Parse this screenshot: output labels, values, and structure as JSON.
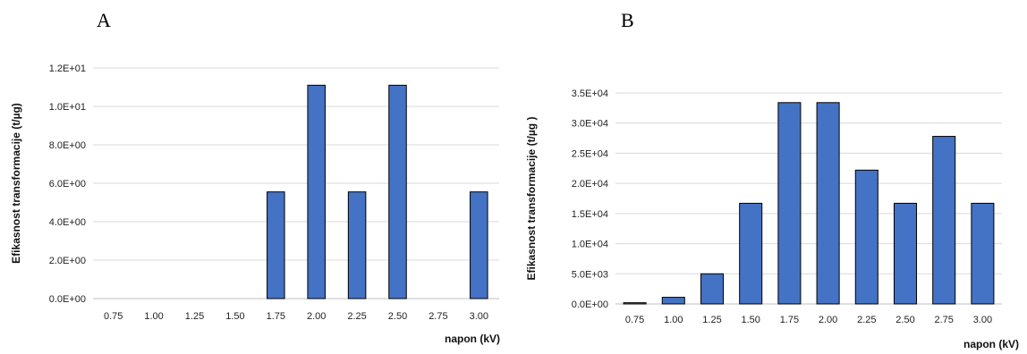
{
  "panels": {
    "a_letter": "A",
    "b_letter": "B"
  },
  "chart_data": [
    {
      "type": "bar",
      "categories": [
        "0.75",
        "1.00",
        "1.25",
        "1.50",
        "1.75",
        "2.00",
        "2.25",
        "2.50",
        "2.75",
        "3.00"
      ],
      "values": [
        0,
        0,
        0,
        0,
        5.55,
        11.1,
        5.55,
        11.1,
        0,
        5.55
      ],
      "title": "",
      "xlabel": "napon (kV)",
      "ylabel": "Efikasnost transformacije (t/µg)",
      "ylim": [
        0,
        12
      ],
      "yticks": [
        0,
        2,
        4,
        6,
        8,
        10,
        12
      ],
      "ytick_labels": [
        "0.0E+00",
        "2.0E+00",
        "4.0E+00",
        "6.0E+00",
        "8.0E+00",
        "1.0E+01",
        "1.2E+01"
      ],
      "grid": true,
      "bar_color": "#4472C4"
    },
    {
      "type": "bar",
      "categories": [
        "0.75",
        "1.00",
        "1.25",
        "1.50",
        "1.75",
        "2.00",
        "2.25",
        "2.50",
        "2.75",
        "3.00"
      ],
      "values": [
        200,
        1100,
        5000,
        16700,
        33400,
        33400,
        22200,
        16700,
        27800,
        16700
      ],
      "title": "",
      "xlabel": "napon (kV)",
      "ylabel": "Efikasnost transformacije  (t/µg )",
      "ylim": [
        0,
        35000
      ],
      "yticks": [
        0,
        5000,
        10000,
        15000,
        20000,
        25000,
        30000,
        35000
      ],
      "ytick_labels": [
        "0.0E+00",
        "5.0E+03",
        "1.0E+04",
        "1.5E+04",
        "2.0E+04",
        "2.5E+04",
        "3.0E+04",
        "3.5E+04"
      ],
      "grid": true,
      "bar_color": "#4472C4"
    }
  ]
}
